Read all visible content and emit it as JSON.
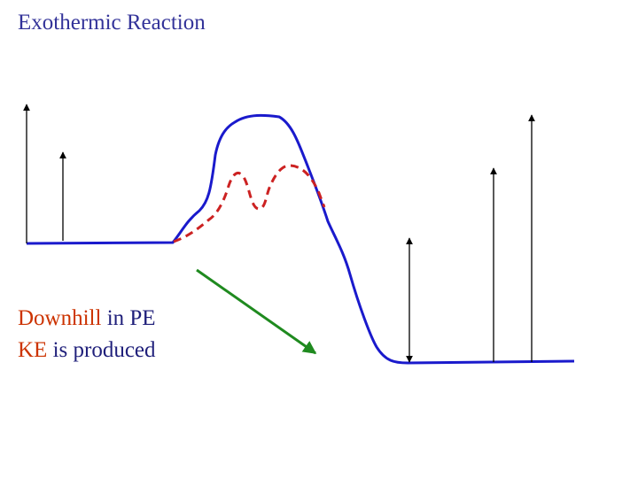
{
  "title": "Exothermic Reaction",
  "caption": {
    "line1_highlight": "Downhill",
    "line1_rest": " in PE",
    "line2_highlight": "KE",
    "line2_rest": " is produced"
  },
  "colors": {
    "title": "#333399",
    "caption_text": "#1f1f7a",
    "caption_highlight": "#cc3300",
    "pe_curve": "#1a1acc",
    "catalyzed_path": "#cc2222",
    "downhill_arrow": "#1f8a1f",
    "ke_arrows": "#000000"
  }
}
